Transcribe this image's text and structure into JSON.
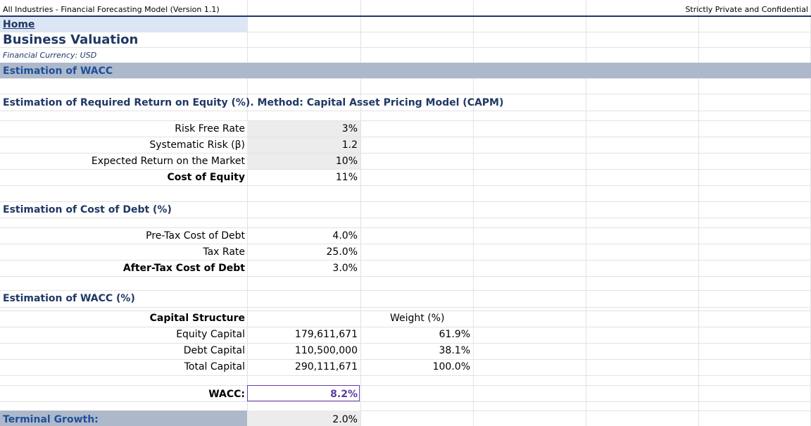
{
  "header": {
    "model_title": "All Industries - Financial Forecasting Model (Version 1.1)",
    "confidential": "Strictly Private and Confidential"
  },
  "nav": {
    "home_link": "Home"
  },
  "page": {
    "title": "Business Valuation",
    "currency": "Financial Currency: USD",
    "section_band": "Estimation of WACC"
  },
  "capm": {
    "heading": "Estimation of Required Return on Equity (%). Method: Capital Asset Pricing Model (CAPM)",
    "rows": [
      {
        "label": "Risk Free Rate",
        "value": "3%"
      },
      {
        "label": "Systematic Risk (β)",
        "value": "1.2"
      },
      {
        "label": "Expected Return on the Market",
        "value": "10%"
      },
      {
        "label": "Cost of Equity",
        "value": "11%"
      }
    ]
  },
  "debt": {
    "heading": "Estimation of Cost of Debt (%)",
    "rows": [
      {
        "label": "Pre-Tax Cost of Debt",
        "value": "4.0%"
      },
      {
        "label": "Tax Rate",
        "value": "25.0%"
      },
      {
        "label": "After-Tax Cost of Debt",
        "value": "3.0%"
      }
    ]
  },
  "wacc_section": {
    "heading": "Estimation of WACC (%)",
    "structure_label": "Capital Structure",
    "weight_header": "Weight (%)",
    "rows": [
      {
        "label": "Equity Capital",
        "amount": "179,611,671",
        "weight": "61.9%"
      },
      {
        "label": "Debt Capital",
        "amount": "110,500,000",
        "weight": "38.1%"
      },
      {
        "label": "Total Capital",
        "amount": "290,111,671",
        "weight": "100.0%"
      }
    ],
    "wacc_label": "WACC:",
    "wacc_value": "8.2%"
  },
  "terminal": {
    "label": "Terminal Growth:",
    "value": "2.0%"
  },
  "colors": {
    "navy": "#1f3864",
    "band": "#adb9ca",
    "home_fill": "#dce6f5",
    "input_fill": "#ececec",
    "wacc_border": "#6a3da8",
    "wacc_text": "#5b3a9e",
    "link": "#1f3864"
  }
}
